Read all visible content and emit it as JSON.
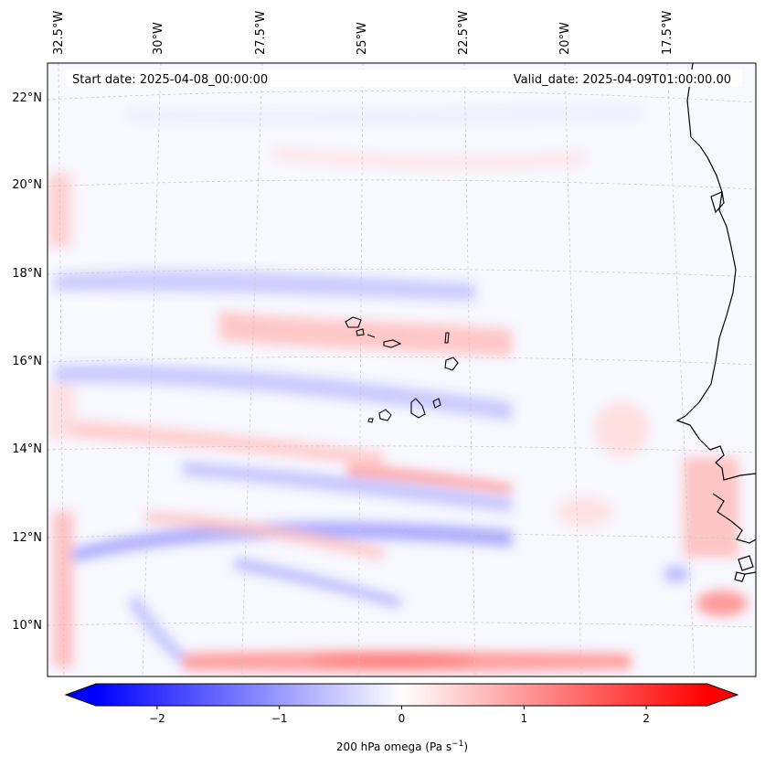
{
  "header": {
    "start_date": "Start date: 2025-04-08_00:00:00",
    "valid_date": "Valid_date: 2025-04-09T01:00:00.00"
  },
  "axes": {
    "lon_labels": [
      "32.5°W",
      "30°W",
      "27.5°W",
      "25°W",
      "22.5°W",
      "20°W",
      "17.5°W"
    ],
    "lat_labels": [
      "22°N",
      "20°N",
      "18°N",
      "16°N",
      "14°N",
      "12°N",
      "10°N"
    ]
  },
  "colorbar": {
    "label": "200 hPa omega (Pa s",
    "label_sup": "−1",
    "label_close": ")",
    "ticks": [
      "−2",
      "−1",
      "0",
      "1",
      "2"
    ],
    "tick_values": [
      -2,
      -1,
      0,
      1,
      2
    ],
    "vmin": -2.5,
    "vmax": 2.5,
    "colormap": "bwr",
    "extend": "both"
  },
  "colors": {
    "negative": "#0000ff",
    "positive": "#ff0000",
    "neutral": "#ffffff"
  },
  "map": {
    "lon_range": [
      -33.0,
      -15.5
    ],
    "lat_range": [
      8.8,
      22.7
    ],
    "coastline_color": "#000000"
  }
}
